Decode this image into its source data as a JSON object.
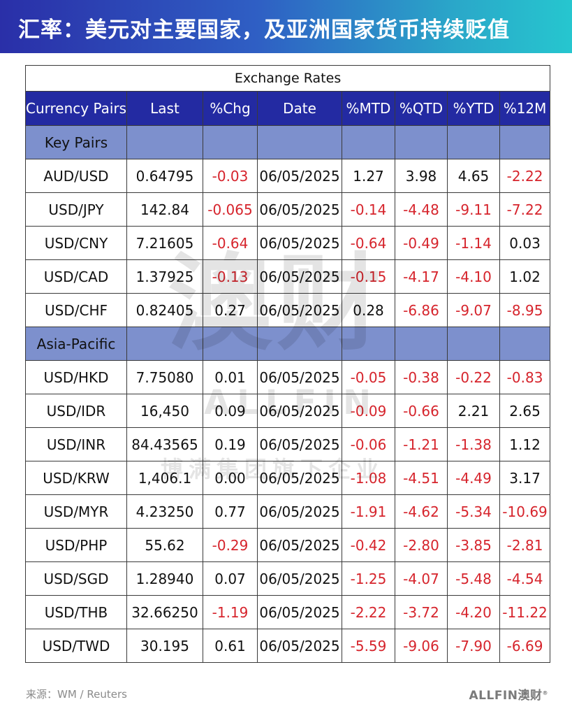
{
  "header": {
    "title": "汇率：美元对主要国家，及亚洲国家货币持续贬值"
  },
  "table": {
    "title": "Exchange Rates",
    "columns": [
      "Currency Pairs",
      "Last",
      "%Chg",
      "Date",
      "%MTD",
      "%QTD",
      "%YTD",
      "%12M"
    ],
    "groups": [
      {
        "label": "Key Pairs",
        "rows": [
          [
            "AUD/USD",
            "0.64795",
            "-0.03",
            "06/05/2025",
            "1.27",
            "3.98",
            "4.65",
            "-2.22"
          ],
          [
            "USD/JPY",
            "142.84",
            "-0.065",
            "06/05/2025",
            "-0.14",
            "-4.48",
            "-9.11",
            "-7.22"
          ],
          [
            "USD/CNY",
            "7.21605",
            "-0.64",
            "06/05/2025",
            "-0.64",
            "-0.49",
            "-1.14",
            "0.03"
          ],
          [
            "USD/CAD",
            "1.37925",
            "-0.13",
            "06/05/2025",
            "-0.15",
            "-4.17",
            "-4.10",
            "1.02"
          ],
          [
            "USD/CHF",
            "0.82405",
            "0.27",
            "06/05/2025",
            "0.28",
            "-6.86",
            "-9.07",
            "-8.95"
          ]
        ]
      },
      {
        "label": "Asia-Pacific",
        "rows": [
          [
            "USD/HKD",
            "7.75080",
            "0.01",
            "06/05/2025",
            "-0.05",
            "-0.38",
            "-0.22",
            "-0.83"
          ],
          [
            "USD/IDR",
            "16,450",
            "0.09",
            "06/05/2025",
            "-0.09",
            "-0.66",
            "2.21",
            "2.65"
          ],
          [
            "USD/INR",
            "84.43565",
            "0.19",
            "06/05/2025",
            "-0.06",
            "-1.21",
            "-1.38",
            "1.12"
          ],
          [
            "USD/KRW",
            "1,406.1",
            "0.00",
            "06/05/2025",
            "-1.08",
            "-4.51",
            "-4.49",
            "3.17"
          ],
          [
            "USD/MYR",
            "4.23250",
            "0.77",
            "06/05/2025",
            "-1.91",
            "-4.62",
            "-5.34",
            "-10.69"
          ],
          [
            "USD/PHP",
            "55.62",
            "-0.29",
            "06/05/2025",
            "-0.42",
            "-2.80",
            "-3.85",
            "-2.81"
          ],
          [
            "USD/SGD",
            "1.28940",
            "0.07",
            "06/05/2025",
            "-1.25",
            "-4.07",
            "-5.48",
            "-4.54"
          ],
          [
            "USD/THB",
            "32.66250",
            "-1.19",
            "06/05/2025",
            "-2.22",
            "-3.72",
            "-4.20",
            "-11.22"
          ],
          [
            "USD/TWD",
            "30.195",
            "0.61",
            "06/05/2025",
            "-5.59",
            "-9.06",
            "-7.90",
            "-6.69"
          ]
        ]
      }
    ]
  },
  "watermark": {
    "main": "澳财",
    "latin": "ALLFIN",
    "sub": "博满集团旗下企业"
  },
  "footer": {
    "source": "来源：WM / Reuters",
    "logo": "ALLFIN澳财"
  },
  "colors": {
    "negative": "#d6242c",
    "header_bg": "#232aa2",
    "group_bg": "#7d90cd",
    "banner_start": "#2a2fa8",
    "banner_end": "#26c6cf"
  }
}
